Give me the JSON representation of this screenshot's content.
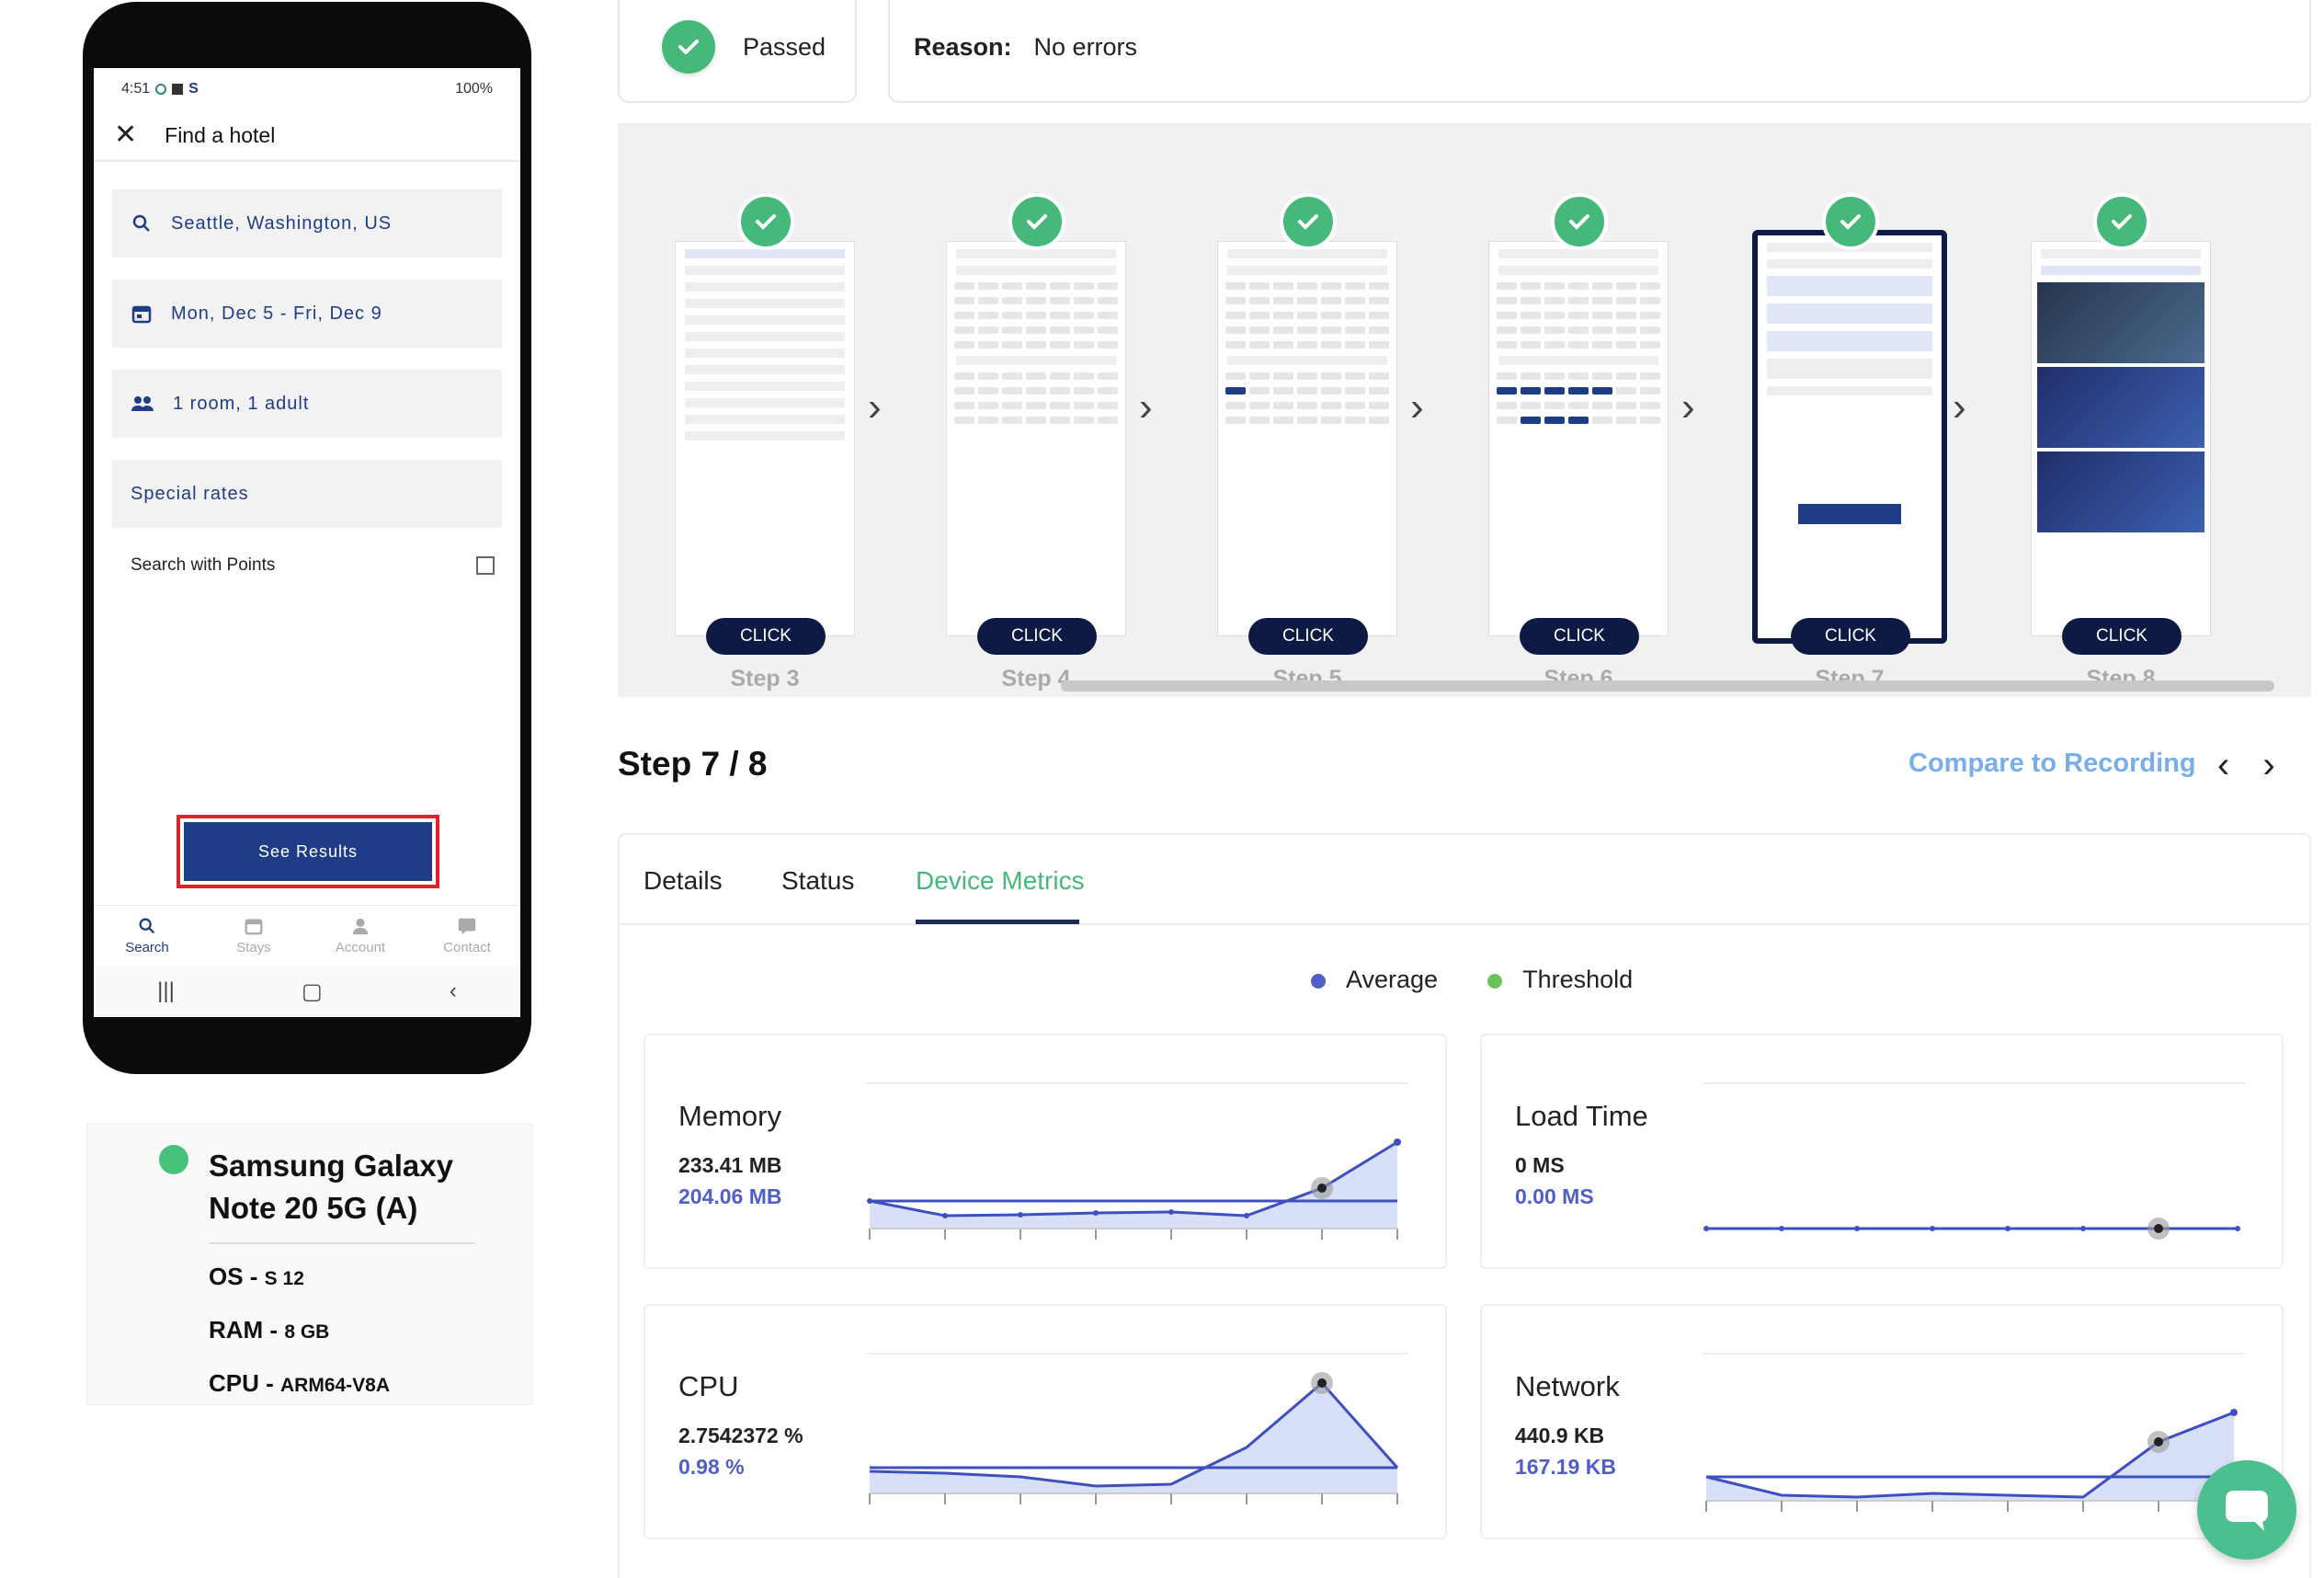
{
  "phone": {
    "status_time": "4:51",
    "status_right": "100%",
    "app_title": "Find a hotel",
    "location": "Seattle, Washington, US",
    "dates": "Mon, Dec 5 - Fri, Dec 9",
    "guests": "1 room, 1 adult",
    "special_rates": "Special rates",
    "search_points": "Search with Points",
    "see_results": "See Results",
    "nav": [
      "Search",
      "Stays",
      "Account",
      "Contact"
    ]
  },
  "device": {
    "name": "Samsung Galaxy Note 20 5G (A)",
    "os_label": "OS - ",
    "os_value": "S 12",
    "ram_label": "RAM - ",
    "ram_value": "8 GB",
    "cpu_label": "CPU - ",
    "cpu_value": "ARM64-V8A"
  },
  "result": {
    "status": "Passed",
    "reason_label": "Reason:",
    "reason_value": "No errors"
  },
  "steps": [
    {
      "label": "Step 3",
      "button": "CLICK"
    },
    {
      "label": "Step 4",
      "button": "CLICK"
    },
    {
      "label": "Step 5",
      "button": "CLICK"
    },
    {
      "label": "Step 6",
      "button": "CLICK"
    },
    {
      "label": "Step 7",
      "button": "CLICK",
      "selected": true
    },
    {
      "label": "Step 8",
      "button": "CLICK"
    }
  ],
  "step_header": {
    "title": "Step 7 / 8",
    "compare": "Compare to Recording"
  },
  "tabs": [
    "Details",
    "Status",
    "Device Metrics"
  ],
  "active_tab": "Device Metrics",
  "legend": {
    "average": "Average",
    "threshold": "Threshold",
    "average_color": "#4f5fc7",
    "threshold_color": "#6cc25a"
  },
  "metrics": {
    "memory": {
      "title": "Memory",
      "value": "233.41 MB",
      "average": "204.06 MB"
    },
    "load_time": {
      "title": "Load Time",
      "value": "0 MS",
      "average": "0.00 MS"
    },
    "cpu": {
      "title": "CPU",
      "value": "2.7542372 %",
      "average": "0.98 %"
    },
    "network": {
      "title": "Network",
      "value": "440.9 KB",
      "average": "167.19 KB"
    }
  },
  "colors": {
    "brand_navy": "#1f3d87",
    "pass_green": "#46b97a",
    "accent_blue": "#4f5fc7"
  }
}
